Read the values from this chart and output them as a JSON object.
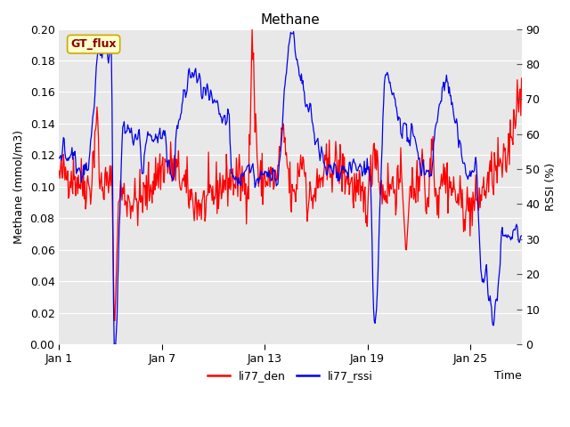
{
  "title": "Methane",
  "xlabel": "Time",
  "ylabel_left": "Methane (mmol/m3)",
  "ylabel_right": "RSSI (%)",
  "ylim_left": [
    0.0,
    0.2
  ],
  "ylim_right": [
    0,
    90
  ],
  "yticks_left": [
    0.0,
    0.02,
    0.04,
    0.06,
    0.08,
    0.1,
    0.12,
    0.14,
    0.16,
    0.18,
    0.2
  ],
  "yticks_right": [
    0,
    10,
    20,
    30,
    40,
    50,
    60,
    70,
    80,
    90
  ],
  "xtick_labels": [
    "Jan 1",
    "Jan 7",
    "Jan 13",
    "Jan 19",
    "Jan 25"
  ],
  "xtick_positions": [
    0,
    6,
    12,
    18,
    24
  ],
  "color_red": "#ff0000",
  "color_blue": "#0000ee",
  "fig_bg": "#ffffff",
  "plot_bg": "#e8e8e8",
  "legend_label": "GT_flux",
  "legend_bg": "#ffffcc",
  "legend_border": "#ccaa00",
  "legend_text_color": "#880000",
  "line1_label": "li77_den",
  "line2_label": "li77_rssi",
  "title_fontsize": 11,
  "axis_fontsize": 9,
  "tick_fontsize": 9,
  "legend_fontsize": 9,
  "n_points": 648,
  "grid_color": "#ffffff",
  "right_tick_color": "#555555"
}
